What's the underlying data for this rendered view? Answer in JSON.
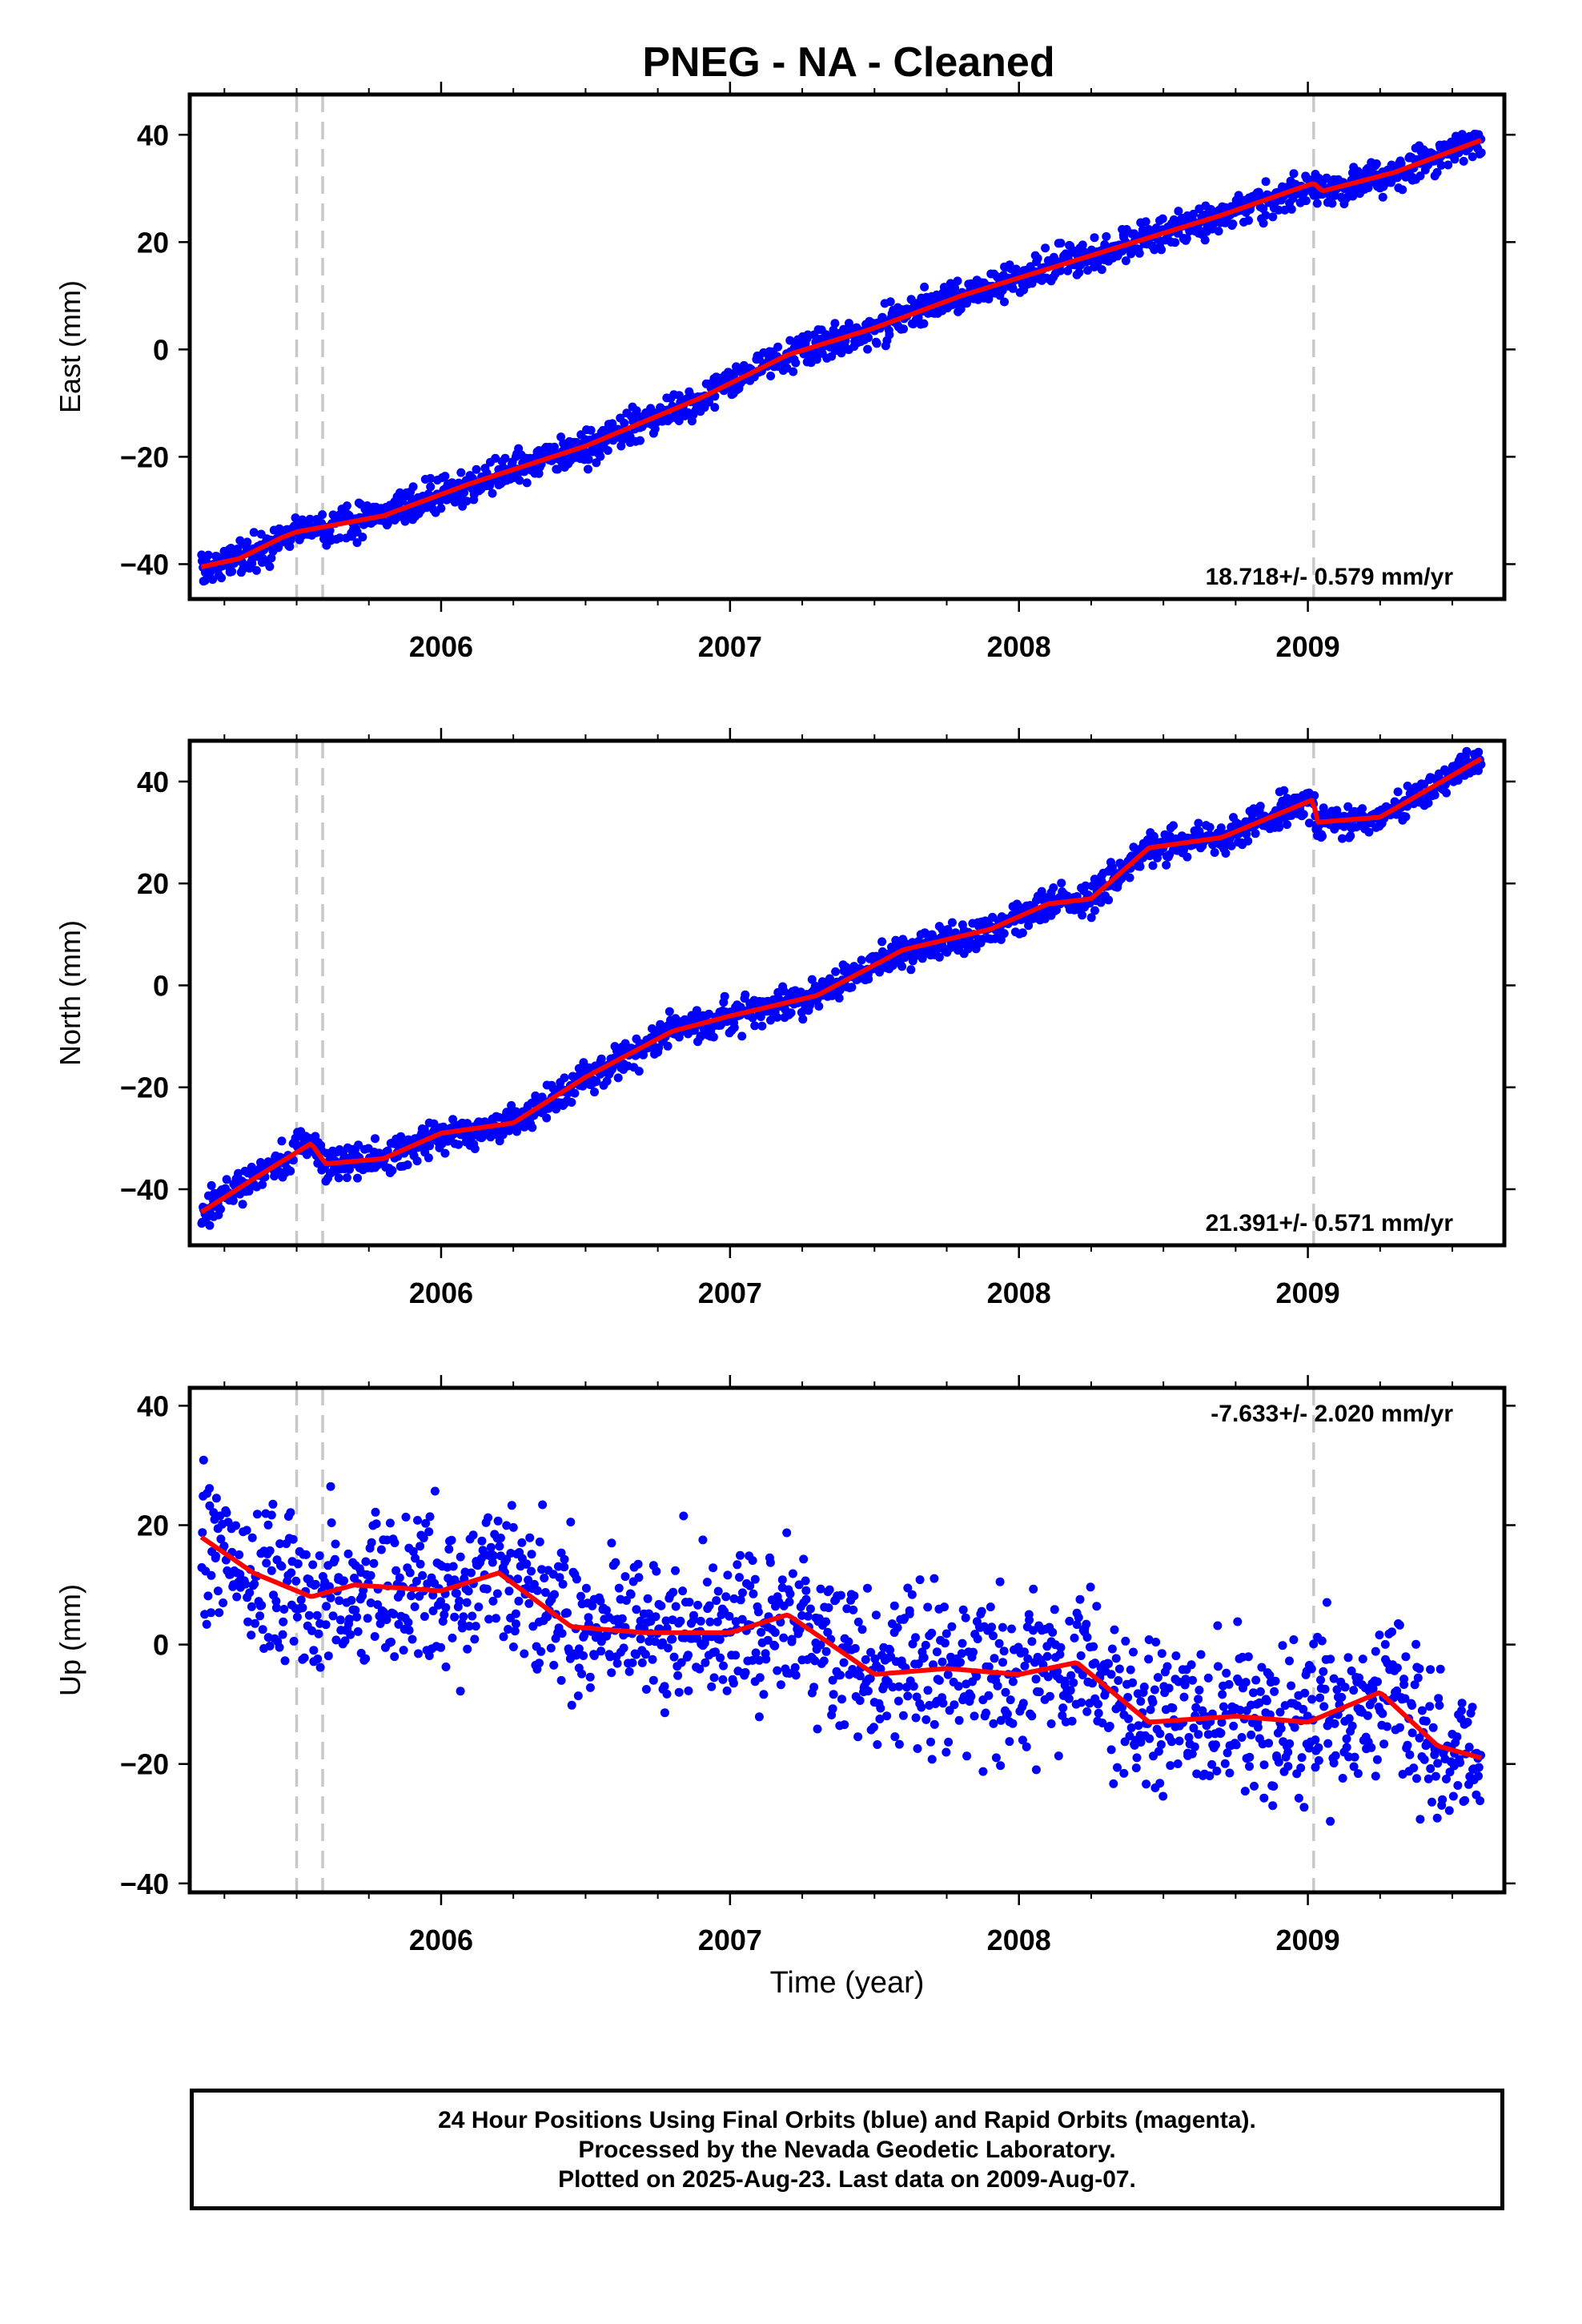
{
  "title": "PNEG  - NA - Cleaned",
  "xlabel": "Time (year)",
  "footer": {
    "line1": "24 Hour Positions Using Final Orbits (blue) and Rapid Orbits (magenta).",
    "line2": "Processed by the Nevada Geodetic Laboratory.",
    "line3": "Plotted on 2025-Aug-23. Last data on 2009-Aug-07."
  },
  "colors": {
    "points": "#0000ff",
    "model": "#ff0000",
    "steps": "#c8c8c8",
    "frame": "#000000"
  },
  "chart_data": [
    {
      "type": "scatter",
      "ylabel": "East (mm)",
      "rate_label": "18.718+/- 0.579 mm/yr",
      "rate_position": "bottom-right",
      "xlim": [
        2005.13,
        2009.68
      ],
      "ylim": [
        -46.5,
        47.5
      ],
      "yticks": [
        -40,
        -20,
        0,
        20,
        40
      ],
      "xticks": [
        2006,
        2007,
        2008,
        2009
      ],
      "step_lines": [
        2005.5,
        2005.59,
        2009.02
      ],
      "data_start": 2005.17,
      "data_end": 2009.6,
      "scatter_sigma": 1.6,
      "model_x": [
        2005.17,
        2005.3,
        2005.45,
        2005.5,
        2005.6,
        2005.8,
        2006.1,
        2006.5,
        2006.9,
        2007.2,
        2007.5,
        2007.8,
        2008.1,
        2008.4,
        2008.7,
        2009.02,
        2009.05,
        2009.3,
        2009.6
      ],
      "model_y": [
        -40.5,
        -39,
        -35,
        -34,
        -33,
        -31,
        -25,
        -18,
        -9,
        -1,
        4,
        10,
        15,
        20,
        25,
        31,
        29.5,
        33,
        39
      ]
    },
    {
      "type": "scatter",
      "ylabel": "North (mm)",
      "rate_label": "21.391+/- 0.571 mm/yr",
      "rate_position": "bottom-right",
      "xlim": [
        2005.13,
        2009.68
      ],
      "ylim": [
        -51,
        48
      ],
      "yticks": [
        -40,
        -20,
        0,
        20,
        40
      ],
      "xticks": [
        2006,
        2007,
        2008,
        2009
      ],
      "step_lines": [
        2005.5,
        2005.59,
        2009.02
      ],
      "data_start": 2005.17,
      "data_end": 2009.6,
      "scatter_sigma": 1.6,
      "model_x": [
        2005.17,
        2005.35,
        2005.55,
        2005.6,
        2005.8,
        2006.0,
        2006.25,
        2006.5,
        2006.8,
        2007.0,
        2007.3,
        2007.6,
        2007.9,
        2008.1,
        2008.25,
        2008.45,
        2008.7,
        2009.02,
        2009.03,
        2009.25,
        2009.6
      ],
      "model_y": [
        -44.5,
        -38,
        -31,
        -35,
        -34,
        -29,
        -27,
        -18,
        -9,
        -6,
        -2,
        7,
        11,
        16,
        17,
        27,
        29,
        36.5,
        32,
        33,
        44.5
      ]
    },
    {
      "type": "scatter",
      "ylabel": "Up (mm)",
      "rate_label": "-7.633+/- 2.020 mm/yr",
      "rate_position": "top-right",
      "xlim": [
        2005.13,
        2009.68
      ],
      "ylim": [
        -41.5,
        43
      ],
      "yticks": [
        -40,
        -20,
        0,
        20,
        40
      ],
      "xticks": [
        2006,
        2007,
        2008,
        2009
      ],
      "step_lines": [
        2005.5,
        2005.59,
        2009.02
      ],
      "data_start": 2005.17,
      "data_end": 2009.6,
      "scatter_sigma": 6.5,
      "model_x": [
        2005.17,
        2005.35,
        2005.55,
        2005.7,
        2006.0,
        2006.2,
        2006.45,
        2006.7,
        2007.0,
        2007.2,
        2007.5,
        2007.75,
        2008.0,
        2008.2,
        2008.45,
        2008.75,
        2009.0,
        2009.1,
        2009.25,
        2009.45,
        2009.6
      ],
      "model_y": [
        18,
        12,
        8,
        10,
        9,
        12,
        3,
        2,
        2,
        5,
        -5,
        -4,
        -5,
        -3,
        -13,
        -12,
        -13,
        -11,
        -8,
        -17,
        -19
      ]
    }
  ]
}
